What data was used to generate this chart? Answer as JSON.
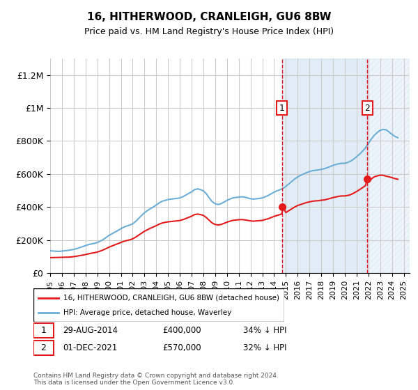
{
  "title": "16, HITHERWOOD, CRANLEIGH, GU6 8BW",
  "subtitle": "Price paid vs. HM Land Registry's House Price Index (HPI)",
  "xlabel": "",
  "ylabel": "",
  "ylim": [
    0,
    1300000
  ],
  "yticks": [
    0,
    200000,
    400000,
    600000,
    800000,
    1000000,
    1200000
  ],
  "ytick_labels": [
    "£0",
    "£200K",
    "£400K",
    "£600K",
    "£800K",
    "£1M",
    "£1.2M"
  ],
  "background_color": "#ffffff",
  "plot_bg_color": "#ffffff",
  "grid_color": "#cccccc",
  "hpi_color": "#6baed6",
  "hpi_fill_color": "#c6dbef",
  "price_color": "#e31a1c",
  "sale1_date": 2014.66,
  "sale1_price": 400000,
  "sale1_label": "1",
  "sale2_date": 2021.92,
  "sale2_price": 570000,
  "sale2_label": "2",
  "shade_start1": 2014.66,
  "shade_end1": 2021.92,
  "footnote": "Contains HM Land Registry data © Crown copyright and database right 2024.\nThis data is licensed under the Open Government Licence v3.0.",
  "legend_line1": "16, HITHERWOOD, CRANLEIGH, GU6 8BW (detached house)",
  "legend_line2": "HPI: Average price, detached house, Waverley",
  "table_row1": [
    "1",
    "29-AUG-2014",
    "£400,000",
    "34% ↓ HPI"
  ],
  "table_row2": [
    "2",
    "01-DEC-2021",
    "£570,000",
    "32% ↓ HPI"
  ],
  "xmin": 1995,
  "xmax": 2025.5,
  "hpi_dates": [
    1995.0,
    1995.25,
    1995.5,
    1995.75,
    1996.0,
    1996.25,
    1996.5,
    1996.75,
    1997.0,
    1997.25,
    1997.5,
    1997.75,
    1998.0,
    1998.25,
    1998.5,
    1998.75,
    1999.0,
    1999.25,
    1999.5,
    1999.75,
    2000.0,
    2000.25,
    2000.5,
    2000.75,
    2001.0,
    2001.25,
    2001.5,
    2001.75,
    2002.0,
    2002.25,
    2002.5,
    2002.75,
    2003.0,
    2003.25,
    2003.5,
    2003.75,
    2004.0,
    2004.25,
    2004.5,
    2004.75,
    2005.0,
    2005.25,
    2005.5,
    2005.75,
    2006.0,
    2006.25,
    2006.5,
    2006.75,
    2007.0,
    2007.25,
    2007.5,
    2007.75,
    2008.0,
    2008.25,
    2008.5,
    2008.75,
    2009.0,
    2009.25,
    2009.5,
    2009.75,
    2010.0,
    2010.25,
    2010.5,
    2010.75,
    2011.0,
    2011.25,
    2011.5,
    2011.75,
    2012.0,
    2012.25,
    2012.5,
    2012.75,
    2013.0,
    2013.25,
    2013.5,
    2013.75,
    2014.0,
    2014.25,
    2014.5,
    2014.75,
    2015.0,
    2015.25,
    2015.5,
    2015.75,
    2016.0,
    2016.25,
    2016.5,
    2016.75,
    2017.0,
    2017.25,
    2017.5,
    2017.75,
    2018.0,
    2018.25,
    2018.5,
    2018.75,
    2019.0,
    2019.25,
    2019.5,
    2019.75,
    2020.0,
    2020.25,
    2020.5,
    2020.75,
    2021.0,
    2021.25,
    2021.5,
    2021.75,
    2022.0,
    2022.25,
    2022.5,
    2022.75,
    2023.0,
    2023.25,
    2023.5,
    2023.75,
    2024.0,
    2024.25,
    2024.5
  ],
  "hpi_values": [
    135000,
    133000,
    132000,
    131000,
    133000,
    135000,
    137000,
    140000,
    143000,
    148000,
    154000,
    160000,
    166000,
    172000,
    176000,
    180000,
    185000,
    193000,
    203000,
    215000,
    228000,
    238000,
    248000,
    258000,
    268000,
    278000,
    285000,
    290000,
    298000,
    312000,
    330000,
    348000,
    365000,
    378000,
    390000,
    400000,
    412000,
    425000,
    435000,
    440000,
    445000,
    448000,
    450000,
    452000,
    455000,
    462000,
    472000,
    482000,
    492000,
    505000,
    510000,
    505000,
    498000,
    480000,
    455000,
    432000,
    420000,
    415000,
    420000,
    430000,
    440000,
    448000,
    455000,
    458000,
    460000,
    462000,
    460000,
    455000,
    450000,
    448000,
    450000,
    452000,
    455000,
    462000,
    470000,
    480000,
    490000,
    498000,
    505000,
    512000,
    525000,
    540000,
    555000,
    570000,
    582000,
    592000,
    600000,
    608000,
    615000,
    620000,
    622000,
    625000,
    628000,
    632000,
    638000,
    645000,
    652000,
    658000,
    662000,
    665000,
    665000,
    670000,
    678000,
    690000,
    705000,
    720000,
    738000,
    758000,
    785000,
    812000,
    835000,
    852000,
    865000,
    870000,
    868000,
    855000,
    840000,
    828000,
    820000
  ],
  "price_dates": [
    1995.0,
    1995.25,
    1995.5,
    1995.75,
    1996.0,
    1996.25,
    1996.5,
    1996.75,
    1997.0,
    1997.25,
    1997.5,
    1997.75,
    1998.0,
    1998.25,
    1998.5,
    1998.75,
    1999.0,
    1999.25,
    1999.5,
    1999.75,
    2000.0,
    2000.25,
    2000.5,
    2000.75,
    2001.0,
    2001.25,
    2001.5,
    2001.75,
    2002.0,
    2002.25,
    2002.5,
    2002.75,
    2003.0,
    2003.25,
    2003.5,
    2003.75,
    2004.0,
    2004.25,
    2004.5,
    2004.75,
    2005.0,
    2005.25,
    2005.5,
    2005.75,
    2006.0,
    2006.25,
    2006.5,
    2006.75,
    2007.0,
    2007.25,
    2007.5,
    2007.75,
    2008.0,
    2008.25,
    2008.5,
    2008.75,
    2009.0,
    2009.25,
    2009.5,
    2009.75,
    2010.0,
    2010.25,
    2010.5,
    2010.75,
    2011.0,
    2011.25,
    2011.5,
    2011.75,
    2012.0,
    2012.25,
    2012.5,
    2012.75,
    2013.0,
    2013.25,
    2013.5,
    2013.75,
    2014.0,
    2014.25,
    2014.5,
    2014.66,
    2014.75,
    2015.0,
    2015.25,
    2015.5,
    2015.75,
    2016.0,
    2016.25,
    2016.5,
    2016.75,
    2017.0,
    2017.25,
    2017.5,
    2017.75,
    2018.0,
    2018.25,
    2018.5,
    2018.75,
    2019.0,
    2019.25,
    2019.5,
    2019.75,
    2020.0,
    2020.25,
    2020.5,
    2020.75,
    2021.0,
    2021.25,
    2021.5,
    2021.75,
    2021.92,
    2022.0,
    2022.25,
    2022.5,
    2022.75,
    2023.0,
    2023.25,
    2023.5,
    2023.75,
    2024.0,
    2024.25,
    2024.5
  ],
  "price_values": [
    93000,
    93500,
    94000,
    94500,
    95000,
    95500,
    96000,
    97000,
    99000,
    102000,
    105000,
    108000,
    112000,
    116000,
    120000,
    123000,
    127000,
    133000,
    140000,
    148000,
    157000,
    164000,
    171000,
    178000,
    185000,
    192000,
    197000,
    201000,
    207000,
    217000,
    229000,
    241000,
    253000,
    262000,
    271000,
    279000,
    287000,
    296000,
    303000,
    307000,
    310000,
    312000,
    314000,
    316000,
    318000,
    323000,
    330000,
    337000,
    344000,
    354000,
    357000,
    354000,
    349000,
    336000,
    319000,
    303000,
    294000,
    291000,
    294000,
    301000,
    308000,
    314000,
    319000,
    321000,
    323000,
    324000,
    322000,
    319000,
    316000,
    314000,
    316000,
    317000,
    319000,
    324000,
    329000,
    336000,
    343000,
    349000,
    354000,
    359000,
    400000,
    366000,
    378000,
    389000,
    400000,
    409000,
    415000,
    421000,
    427000,
    431000,
    435000,
    437000,
    438000,
    441000,
    443000,
    447000,
    452000,
    457000,
    461000,
    465000,
    467000,
    467000,
    470000,
    475000,
    484000,
    494000,
    505000,
    517000,
    530000,
    570000,
    550000,
    570000,
    583000,
    588000,
    593000,
    592000,
    587000,
    583000,
    578000,
    572000,
    568000
  ],
  "xtick_years": [
    1995,
    1996,
    1997,
    1998,
    1999,
    2000,
    2001,
    2002,
    2003,
    2004,
    2005,
    2006,
    2007,
    2008,
    2009,
    2010,
    2011,
    2012,
    2013,
    2014,
    2015,
    2016,
    2017,
    2018,
    2019,
    2020,
    2021,
    2022,
    2023,
    2024,
    2025
  ]
}
